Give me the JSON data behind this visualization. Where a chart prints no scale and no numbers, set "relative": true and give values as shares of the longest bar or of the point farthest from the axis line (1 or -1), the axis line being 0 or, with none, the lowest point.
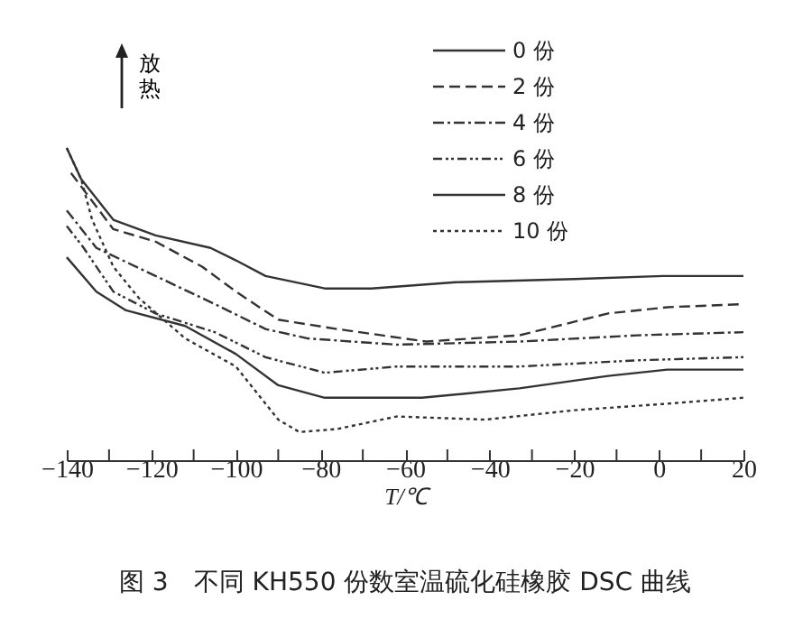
{
  "chart_data": {
    "type": "line",
    "title": "图 3　不同 KH550 份数室温硫化硅橡胶 DSC 曲线",
    "xlabel": "T/℃",
    "ylabel": "放热",
    "relative": true,
    "legend": "top right",
    "grid": false,
    "marker": "none",
    "xlim": [
      -140,
      20
    ],
    "xticks": [
      -140,
      {
        "value": -130,
        "label": null
      },
      -120,
      {
        "value": -110,
        "label": null
      },
      -100,
      {
        "value": -90,
        "label": null
      },
      -80,
      {
        "value": -70,
        "label": null
      },
      -60,
      {
        "value": -50,
        "label": null
      },
      -40,
      {
        "value": -30,
        "label": null
      },
      -20,
      {
        "value": -10,
        "label": null
      },
      0,
      {
        "value": 10,
        "label": null
      },
      20
    ],
    "series": [
      {
        "name": "0 份",
        "color": "#333333",
        "line_style": "solid",
        "x": [
          -140,
          -136.6,
          -129,
          -119,
          -106,
          -100,
          -93,
          -79,
          -68,
          -48,
          -20,
          1,
          20
        ],
        "values": [
          1.0,
          0.9,
          0.77,
          0.72,
          0.68,
          0.64,
          0.59,
          0.55,
          0.55,
          0.57,
          0.58,
          0.59,
          0.59
        ]
      },
      {
        "name": "2 份",
        "color": "#333333",
        "line_style": "dashed",
        "x": [
          -139,
          -129,
          -119,
          -108,
          -100,
          -90,
          -76,
          -55,
          -33,
          -12,
          2,
          20
        ],
        "values": [
          0.92,
          0.74,
          0.7,
          0.62,
          0.54,
          0.45,
          0.42,
          0.38,
          0.4,
          0.47,
          0.49,
          0.5
        ]
      },
      {
        "name": "4 份",
        "color": "#333333",
        "line_style": "dashdot",
        "x": [
          -140,
          -133,
          -119,
          -105,
          -93,
          -83,
          -62,
          -33,
          -5,
          20
        ],
        "values": [
          0.8,
          0.68,
          0.59,
          0.5,
          0.42,
          0.39,
          0.37,
          0.38,
          0.4,
          0.41
        ]
      },
      {
        "name": "6 份",
        "color": "#333333",
        "line_style": "dashdotdot",
        "x": [
          -140,
          -136,
          -129,
          -119,
          -105,
          -93,
          -79,
          -62,
          -33,
          -5,
          20
        ],
        "values": [
          0.75,
          0.68,
          0.54,
          0.47,
          0.41,
          0.33,
          0.28,
          0.3,
          0.3,
          0.32,
          0.33
        ]
      },
      {
        "name": "8 份",
        "color": "#333333",
        "line_style": "solid",
        "x": [
          -140,
          -133,
          -126,
          -112,
          -100,
          -90,
          -79,
          -56,
          -33,
          -12,
          2,
          20
        ],
        "values": [
          0.65,
          0.54,
          0.48,
          0.43,
          0.34,
          0.24,
          0.2,
          0.2,
          0.23,
          0.27,
          0.29,
          0.29
        ]
      },
      {
        "name": "10 份",
        "color": "#333333",
        "line_style": "dotted",
        "x": [
          -140,
          -136.6,
          -134,
          -129,
          -123,
          -112,
          -100,
          -90,
          -85,
          -76,
          -62,
          -41,
          -20,
          1,
          20
        ],
        "values": [
          1.0,
          0.9,
          0.77,
          0.62,
          0.52,
          0.39,
          0.3,
          0.13,
          0.09,
          0.1,
          0.14,
          0.13,
          0.16,
          0.18,
          0.2
        ]
      }
    ]
  }
}
